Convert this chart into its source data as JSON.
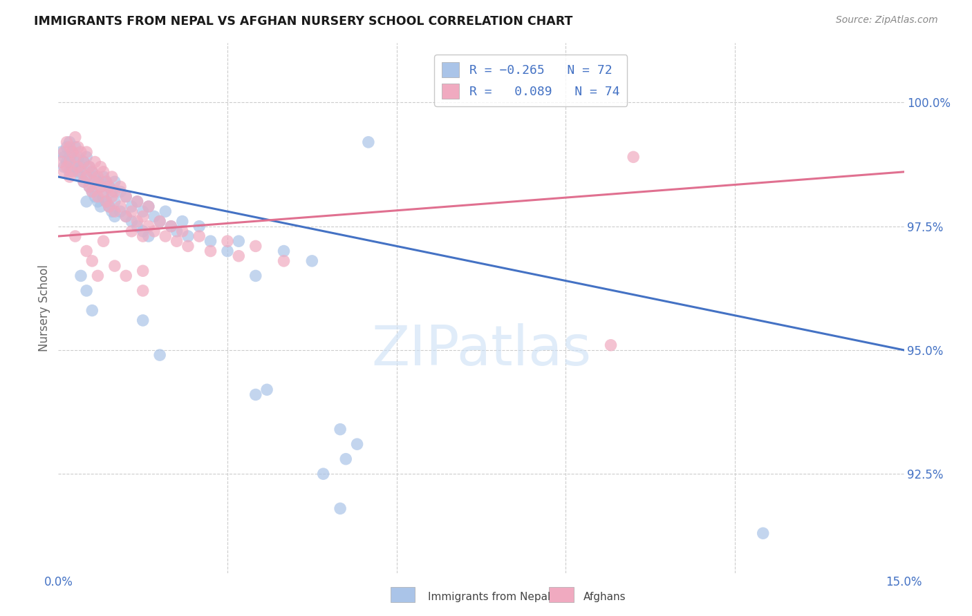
{
  "title": "IMMIGRANTS FROM NEPAL VS AFGHAN NURSERY SCHOOL CORRELATION CHART",
  "source": "Source: ZipAtlas.com",
  "ylabel": "Nursery School",
  "xlim": [
    0.0,
    15.0
  ],
  "ylim": [
    90.5,
    101.2
  ],
  "ytick_vals": [
    92.5,
    95.0,
    97.5,
    100.0
  ],
  "ytick_labels": [
    "92.5%",
    "95.0%",
    "97.5%",
    "100.0%"
  ],
  "watermark": "ZIPatlas",
  "nepal_color": "#aac4e8",
  "afghan_color": "#f0aac0",
  "nepal_line_color": "#4472c4",
  "afghan_line_color": "#e07090",
  "axis_label_color": "#4472c4",
  "nepal_line": [
    0.0,
    98.5,
    15.0,
    95.0
  ],
  "afghan_line": [
    0.0,
    97.3,
    15.0,
    98.6
  ],
  "nepal_points": [
    [
      0.05,
      99.0
    ],
    [
      0.1,
      98.9
    ],
    [
      0.1,
      98.7
    ],
    [
      0.15,
      99.1
    ],
    [
      0.15,
      98.8
    ],
    [
      0.2,
      99.2
    ],
    [
      0.2,
      98.9
    ],
    [
      0.2,
      98.6
    ],
    [
      0.25,
      99.0
    ],
    [
      0.25,
      98.7
    ],
    [
      0.3,
      99.1
    ],
    [
      0.3,
      98.8
    ],
    [
      0.35,
      98.9
    ],
    [
      0.35,
      98.6
    ],
    [
      0.4,
      98.7
    ],
    [
      0.4,
      98.5
    ],
    [
      0.45,
      98.8
    ],
    [
      0.45,
      98.4
    ],
    [
      0.5,
      98.9
    ],
    [
      0.5,
      98.5
    ],
    [
      0.5,
      98.0
    ],
    [
      0.55,
      98.7
    ],
    [
      0.55,
      98.3
    ],
    [
      0.6,
      98.6
    ],
    [
      0.6,
      98.2
    ],
    [
      0.65,
      98.5
    ],
    [
      0.65,
      98.1
    ],
    [
      0.7,
      98.4
    ],
    [
      0.7,
      98.0
    ],
    [
      0.75,
      98.3
    ],
    [
      0.75,
      97.9
    ],
    [
      0.8,
      98.5
    ],
    [
      0.8,
      98.1
    ],
    [
      0.85,
      98.4
    ],
    [
      0.85,
      98.0
    ],
    [
      0.9,
      98.3
    ],
    [
      0.9,
      97.9
    ],
    [
      0.95,
      98.2
    ],
    [
      0.95,
      97.8
    ],
    [
      1.0,
      98.4
    ],
    [
      1.0,
      98.0
    ],
    [
      1.0,
      97.7
    ],
    [
      1.1,
      98.2
    ],
    [
      1.1,
      97.8
    ],
    [
      1.2,
      98.1
    ],
    [
      1.2,
      97.7
    ],
    [
      1.3,
      97.9
    ],
    [
      1.3,
      97.6
    ],
    [
      1.4,
      98.0
    ],
    [
      1.4,
      97.5
    ],
    [
      1.5,
      97.8
    ],
    [
      1.5,
      97.4
    ],
    [
      1.6,
      97.9
    ],
    [
      1.6,
      97.3
    ],
    [
      1.7,
      97.7
    ],
    [
      1.8,
      97.6
    ],
    [
      1.9,
      97.8
    ],
    [
      2.0,
      97.5
    ],
    [
      2.1,
      97.4
    ],
    [
      2.2,
      97.6
    ],
    [
      2.3,
      97.3
    ],
    [
      2.5,
      97.5
    ],
    [
      2.7,
      97.2
    ],
    [
      3.0,
      97.0
    ],
    [
      3.2,
      97.2
    ],
    [
      3.5,
      96.5
    ],
    [
      4.0,
      97.0
    ],
    [
      4.5,
      96.8
    ],
    [
      5.5,
      99.2
    ],
    [
      0.4,
      96.5
    ],
    [
      0.5,
      96.2
    ],
    [
      0.6,
      95.8
    ],
    [
      1.5,
      95.6
    ],
    [
      1.8,
      94.9
    ],
    [
      3.5,
      94.1
    ],
    [
      3.7,
      94.2
    ],
    [
      5.0,
      93.4
    ],
    [
      5.3,
      93.1
    ],
    [
      5.0,
      91.8
    ],
    [
      12.5,
      91.3
    ],
    [
      4.7,
      92.5
    ],
    [
      5.1,
      92.8
    ]
  ],
  "afghan_points": [
    [
      0.05,
      98.8
    ],
    [
      0.1,
      99.0
    ],
    [
      0.1,
      98.6
    ],
    [
      0.15,
      99.2
    ],
    [
      0.15,
      98.7
    ],
    [
      0.2,
      99.1
    ],
    [
      0.2,
      98.8
    ],
    [
      0.2,
      98.5
    ],
    [
      0.25,
      99.0
    ],
    [
      0.25,
      98.6
    ],
    [
      0.3,
      99.3
    ],
    [
      0.3,
      98.9
    ],
    [
      0.35,
      99.1
    ],
    [
      0.35,
      98.7
    ],
    [
      0.4,
      99.0
    ],
    [
      0.4,
      98.6
    ],
    [
      0.45,
      98.8
    ],
    [
      0.45,
      98.4
    ],
    [
      0.5,
      99.0
    ],
    [
      0.5,
      98.5
    ],
    [
      0.55,
      98.7
    ],
    [
      0.55,
      98.3
    ],
    [
      0.6,
      98.6
    ],
    [
      0.6,
      98.2
    ],
    [
      0.65,
      98.8
    ],
    [
      0.65,
      98.4
    ],
    [
      0.7,
      98.5
    ],
    [
      0.7,
      98.1
    ],
    [
      0.75,
      98.7
    ],
    [
      0.75,
      98.3
    ],
    [
      0.8,
      98.6
    ],
    [
      0.8,
      98.2
    ],
    [
      0.85,
      98.4
    ],
    [
      0.85,
      98.0
    ],
    [
      0.9,
      98.3
    ],
    [
      0.9,
      97.9
    ],
    [
      0.95,
      98.5
    ],
    [
      0.95,
      98.1
    ],
    [
      1.0,
      98.2
    ],
    [
      1.0,
      97.8
    ],
    [
      1.1,
      98.3
    ],
    [
      1.1,
      97.9
    ],
    [
      1.2,
      98.1
    ],
    [
      1.2,
      97.7
    ],
    [
      1.3,
      97.8
    ],
    [
      1.3,
      97.4
    ],
    [
      1.4,
      98.0
    ],
    [
      1.4,
      97.6
    ],
    [
      1.5,
      97.7
    ],
    [
      1.5,
      97.3
    ],
    [
      1.6,
      97.9
    ],
    [
      1.6,
      97.5
    ],
    [
      1.7,
      97.4
    ],
    [
      1.8,
      97.6
    ],
    [
      1.9,
      97.3
    ],
    [
      2.0,
      97.5
    ],
    [
      2.1,
      97.2
    ],
    [
      2.2,
      97.4
    ],
    [
      2.3,
      97.1
    ],
    [
      2.5,
      97.3
    ],
    [
      2.7,
      97.0
    ],
    [
      3.0,
      97.2
    ],
    [
      3.2,
      96.9
    ],
    [
      3.5,
      97.1
    ],
    [
      4.0,
      96.8
    ],
    [
      0.3,
      97.3
    ],
    [
      0.5,
      97.0
    ],
    [
      0.6,
      96.8
    ],
    [
      0.7,
      96.5
    ],
    [
      0.8,
      97.2
    ],
    [
      1.0,
      96.7
    ],
    [
      1.2,
      96.5
    ],
    [
      1.5,
      96.2
    ],
    [
      1.5,
      96.6
    ],
    [
      9.8,
      95.1
    ],
    [
      10.2,
      98.9
    ]
  ]
}
